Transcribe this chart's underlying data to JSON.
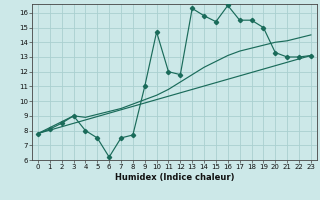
{
  "title": "",
  "xlabel": "Humidex (Indice chaleur)",
  "bg_color": "#cce8e8",
  "grid_color": "#aad0d0",
  "line_color": "#1a6b5a",
  "xlim": [
    -0.5,
    23.5
  ],
  "ylim": [
    6.0,
    16.6
  ],
  "xticks": [
    0,
    1,
    2,
    3,
    4,
    5,
    6,
    7,
    8,
    9,
    10,
    11,
    12,
    13,
    14,
    15,
    16,
    17,
    18,
    19,
    20,
    21,
    22,
    23
  ],
  "yticks": [
    6,
    7,
    8,
    9,
    10,
    11,
    12,
    13,
    14,
    15,
    16
  ],
  "line1_x": [
    0,
    1,
    2,
    3,
    4,
    5,
    6,
    7,
    8,
    9,
    10,
    11,
    12,
    13,
    14,
    15,
    16,
    17,
    18,
    19,
    20,
    21,
    22,
    23
  ],
  "line1_y": [
    7.8,
    8.1,
    8.5,
    9.0,
    8.0,
    7.5,
    6.2,
    7.5,
    7.7,
    11.0,
    14.7,
    12.0,
    11.8,
    16.3,
    15.8,
    15.4,
    16.5,
    15.5,
    15.5,
    15.0,
    13.3,
    13.0,
    13.0,
    13.1
  ],
  "line2_x": [
    0,
    1,
    2,
    3,
    4,
    5,
    6,
    7,
    8,
    9,
    10,
    11,
    12,
    13,
    14,
    15,
    16,
    17,
    18,
    19,
    20,
    21,
    22,
    23
  ],
  "line2_y": [
    7.8,
    8.2,
    8.6,
    9.0,
    8.9,
    9.1,
    9.3,
    9.5,
    9.8,
    10.1,
    10.4,
    10.8,
    11.3,
    11.8,
    12.3,
    12.7,
    13.1,
    13.4,
    13.6,
    13.8,
    14.0,
    14.1,
    14.3,
    14.5
  ],
  "line3_x": [
    0,
    23
  ],
  "line3_y": [
    7.8,
    13.1
  ],
  "marker": "D",
  "markersize": 2.2,
  "lw": 0.85
}
